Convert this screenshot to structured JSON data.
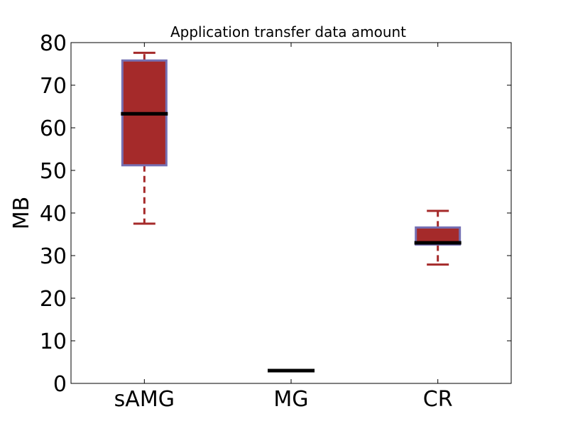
{
  "chart_data": {
    "type": "box",
    "title": "Application transfer data amount",
    "xlabel": "",
    "ylabel": "MB",
    "ylim": [
      0,
      80
    ],
    "yticks": [
      "0",
      "10",
      "20",
      "30",
      "40",
      "50",
      "60",
      "70",
      "80"
    ],
    "categories": [
      "sAMG",
      "MG",
      "CR"
    ],
    "boxes": [
      {
        "category": "sAMG",
        "whisker_low": 37.5,
        "q1": 51.2,
        "median": 63.3,
        "q3": 75.8,
        "whisker_high": 77.6
      },
      {
        "category": "MG",
        "whisker_low": 3.0,
        "q1": 3.0,
        "median": 3.0,
        "q3": 3.0,
        "whisker_high": 3.0
      },
      {
        "category": "CR",
        "whisker_low": 27.9,
        "q1": 32.6,
        "median": 33.0,
        "q3": 36.6,
        "whisker_high": 40.5
      }
    ],
    "grid": false,
    "colors": {
      "box_fill": "#a52a2a",
      "box_edge": "#7570b3",
      "whisker": "#a52a2a",
      "median": "#000000",
      "axes": "#000000"
    }
  }
}
